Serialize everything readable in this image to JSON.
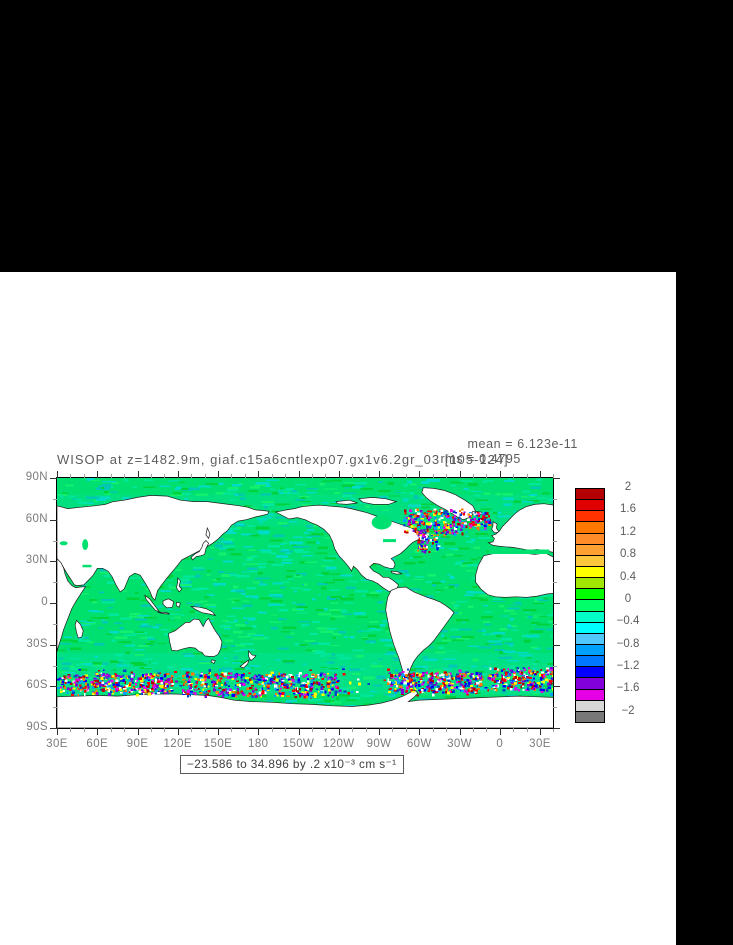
{
  "window": {
    "background": "#000000",
    "panel_background": "#ffffff"
  },
  "figure": {
    "title": "WISOP at z=1482.9m, giaf.c15a6cntlexp07.gx1v6.2gr_03 [105-124]",
    "stats": {
      "mean": "mean = 6.123e-11",
      "rms": "rms = 0.4795"
    },
    "caption": "−23.586 to 34.896 by .2 x10⁻³ cm s⁻¹"
  },
  "axes": {
    "x_tick_labels": [
      "30E",
      "60E",
      "90E",
      "120E",
      "150E",
      "180",
      "150W",
      "120W",
      "90W",
      "60W",
      "30W",
      "0",
      "30E"
    ],
    "y_tick_labels": [
      "90N",
      "60N",
      "30N",
      "0",
      "30S",
      "60S",
      "90S"
    ]
  },
  "colorbar": {
    "tick_labels": [
      "2",
      "1.6",
      "1.2",
      "0.8",
      "0.4",
      "0",
      "−0.4",
      "−0.8",
      "−1.2",
      "−1.6",
      "−2"
    ],
    "cell_colors": [
      "#b40000",
      "#e10000",
      "#ff3200",
      "#ff7800",
      "#ff8c28",
      "#ffa032",
      "#ffc83c",
      "#ffff00",
      "#a0e600",
      "#00ff00",
      "#00ff69",
      "#00ffc8",
      "#00ffff",
      "#50c8ff",
      "#00a0ff",
      "#0078ff",
      "#0000ff",
      "#8200dc",
      "#e600e6",
      "#d7d7d7",
      "#787878"
    ]
  },
  "map": {
    "land_color": "#ffffff",
    "coast_color": "#1e1e1e",
    "ocean_base": "#00e070",
    "ocean_mottle": [
      "#00e8a0",
      "#00dcc8",
      "#00d23c",
      "#12f06e",
      "#00c8b4"
    ],
    "speckle_colors": [
      "#ff0000",
      "#b40000",
      "#ff7800",
      "#ffff00",
      "#0000ff",
      "#00a0ff",
      "#e600e6",
      "#8200dc",
      "#ffffff",
      "#0046c8"
    ]
  },
  "chart_data": {
    "type": "heatmap",
    "title": "WISOP at z=1482.9m, giaf.c15a6cntlexp07.gx1v6.2gr_03 [105-124]",
    "stats": {
      "mean": "6.123e-11",
      "rms": "0.4795"
    },
    "x": {
      "label_units": "longitude",
      "range": [
        "30E",
        "390E"
      ],
      "tick_labels": [
        "30E",
        "60E",
        "90E",
        "120E",
        "150E",
        "180",
        "150W",
        "120W",
        "90W",
        "60W",
        "30W",
        "0",
        "30E"
      ],
      "minor_tick_interval_deg": 10
    },
    "y": {
      "label_units": "latitude",
      "range": [
        "90S",
        "90N"
      ],
      "tick_labels": [
        "90N",
        "60N",
        "30N",
        "0",
        "30S",
        "60S",
        "90S"
      ],
      "minor_tick_interval_deg": 15
    },
    "colorbar": {
      "min": -2,
      "max": 2,
      "step": 0.2,
      "tick_values": [
        2,
        1.6,
        1.2,
        0.8,
        0.4,
        0,
        -0.4,
        -0.8,
        -1.2,
        -1.6,
        -2
      ]
    },
    "field_range": {
      "min": -23.586,
      "max": 34.896,
      "contour_interval": 0.2,
      "units": "x10⁻³ cm s⁻¹"
    },
    "legend_position": "right",
    "grid": false,
    "description": "Global ocean field near zero (green/cyan) with strong +/- eddies (red/yellow/blue/magenta speckles) along the Southern Ocean and the subpolar North Atlantic; land is white."
  }
}
